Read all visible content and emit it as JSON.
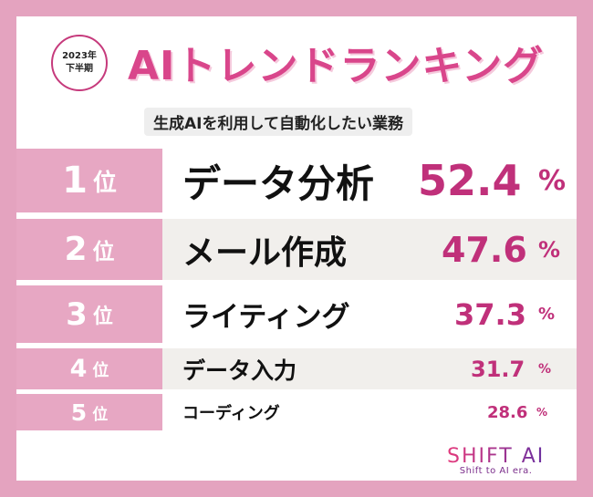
{
  "badge": {
    "year": "2023年",
    "period": "下半期"
  },
  "title": "AIトレンドランキング",
  "subtitle": "生成AIを利用して自動化したい業務",
  "ranking": [
    {
      "rank": "1",
      "rank_suffix": "位",
      "item": "データ分析",
      "percent": "52.4",
      "unit": "%"
    },
    {
      "rank": "2",
      "rank_suffix": "位",
      "item": "メール作成",
      "percent": "47.6",
      "unit": "%"
    },
    {
      "rank": "3",
      "rank_suffix": "位",
      "item": "ライティング",
      "percent": "37.3",
      "unit": "%"
    },
    {
      "rank": "4",
      "rank_suffix": "位",
      "item": "データ入力",
      "percent": "31.7",
      "unit": "%"
    },
    {
      "rank": "5",
      "rank_suffix": "位",
      "item": "コーディング",
      "percent": "28.6",
      "unit": "%"
    }
  ],
  "logo": {
    "name": "SHIFT AI",
    "tagline": "Shift to AI era."
  },
  "colors": {
    "background": "#e4a3bf",
    "rank_cell": "#e7a7c3",
    "accent": "#c0307a",
    "title": "#d9468b",
    "band_gray": "#f1efec"
  }
}
